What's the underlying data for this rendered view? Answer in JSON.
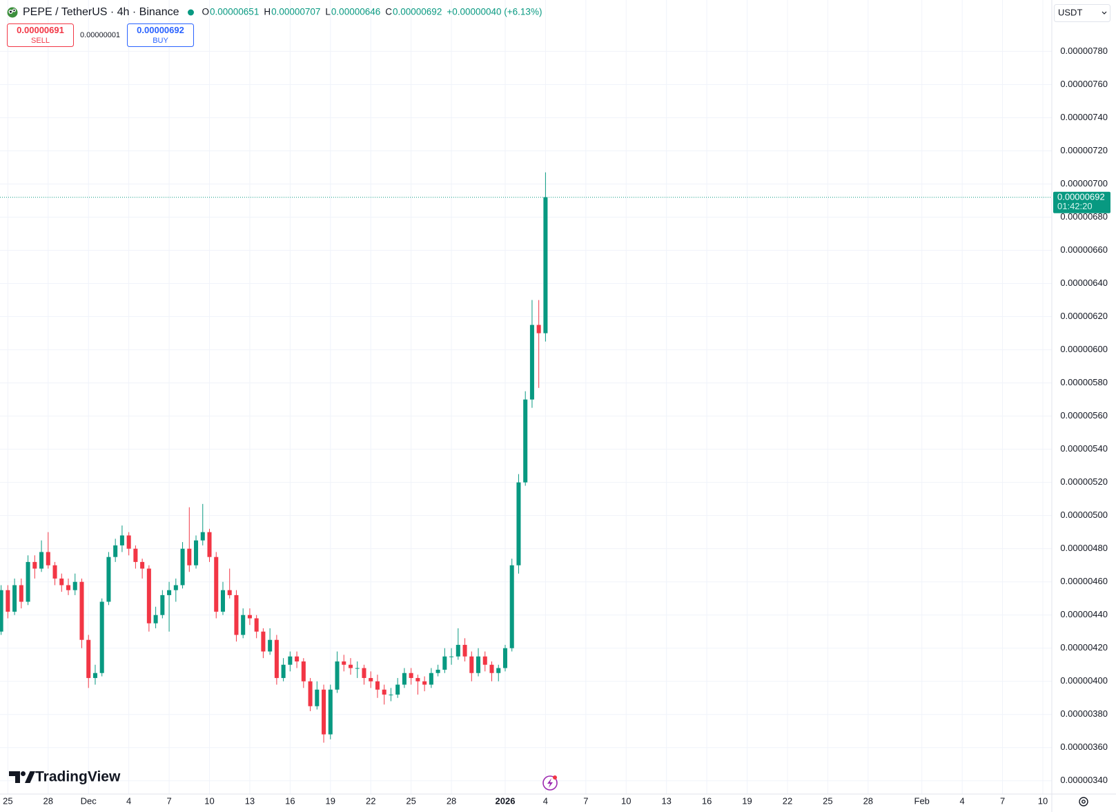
{
  "chart_data": {
    "type": "candlestick",
    "title": "PEPE / TetherUS · 4h · Binance",
    "ohlc": [
      {
        "key": "O",
        "value": "0.00000651"
      },
      {
        "key": "H",
        "value": "0.00000707"
      },
      {
        "key": "L",
        "value": "0.00000646"
      },
      {
        "key": "C",
        "value": "0.00000692"
      }
    ],
    "change": "+0.00000040 (+6.13%)",
    "sell": {
      "price": "0.00000691",
      "label": "SELL"
    },
    "spread": "0.00000001",
    "buy": {
      "price": "0.00000692",
      "label": "BUY"
    },
    "currency": "USDT",
    "logo": "TradingView",
    "up_color": "#089981",
    "down_color": "#f23645",
    "grid": true,
    "last_price": {
      "value": 6.92e-06,
      "label": "0.00000692",
      "countdown": "01:42:20"
    },
    "xlim": [
      "2025-11-24 10:00",
      "2026-02-10 16:00"
    ],
    "ylim": [
      3.32e-06,
      8.11e-06
    ],
    "yticks": [
      {
        "value": 3.4e-06,
        "label": "0.00000340"
      },
      {
        "value": 3.6e-06,
        "label": "0.00000360"
      },
      {
        "value": 3.8e-06,
        "label": "0.00000380"
      },
      {
        "value": 4e-06,
        "label": "0.00000400"
      },
      {
        "value": 4.2e-06,
        "label": "0.00000420"
      },
      {
        "value": 4.4e-06,
        "label": "0.00000440"
      },
      {
        "value": 4.6e-06,
        "label": "0.00000460"
      },
      {
        "value": 4.8e-06,
        "label": "0.00000480"
      },
      {
        "value": 5e-06,
        "label": "0.00000500"
      },
      {
        "value": 5.2e-06,
        "label": "0.00000520"
      },
      {
        "value": 5.4e-06,
        "label": "0.00000540"
      },
      {
        "value": 5.6e-06,
        "label": "0.00000560"
      },
      {
        "value": 5.8e-06,
        "label": "0.00000580"
      },
      {
        "value": 6e-06,
        "label": "0.00000600"
      },
      {
        "value": 6.2e-06,
        "label": "0.00000620"
      },
      {
        "value": 6.4e-06,
        "label": "0.00000640"
      },
      {
        "value": 6.6e-06,
        "label": "0.00000660"
      },
      {
        "value": 6.8e-06,
        "label": "0.00000680"
      },
      {
        "value": 7e-06,
        "label": "0.00000700"
      },
      {
        "value": 7.2e-06,
        "label": "0.00000720"
      },
      {
        "value": 7.4e-06,
        "label": "0.00000740"
      },
      {
        "value": 7.6e-06,
        "label": "0.00000760"
      },
      {
        "value": 7.8e-06,
        "label": "0.00000780"
      }
    ],
    "xticks": [
      {
        "value": "2025-11-25",
        "label": "25"
      },
      {
        "value": "2025-11-28",
        "label": "28"
      },
      {
        "value": "2025-12-01",
        "label": "Dec"
      },
      {
        "value": "2025-12-04",
        "label": "4"
      },
      {
        "value": "2025-12-07",
        "label": "7"
      },
      {
        "value": "2025-12-10",
        "label": "10"
      },
      {
        "value": "2025-12-13",
        "label": "13"
      },
      {
        "value": "2025-12-16",
        "label": "16"
      },
      {
        "value": "2025-12-19",
        "label": "19"
      },
      {
        "value": "2025-12-22",
        "label": "22"
      },
      {
        "value": "2025-12-25",
        "label": "25"
      },
      {
        "value": "2025-12-28",
        "label": "28"
      },
      {
        "value": "2026-01-01",
        "label": "2026"
      },
      {
        "value": "2026-01-04",
        "label": "4"
      },
      {
        "value": "2026-01-07",
        "label": "7"
      },
      {
        "value": "2026-01-10",
        "label": "10"
      },
      {
        "value": "2026-01-13",
        "label": "13"
      },
      {
        "value": "2026-01-16",
        "label": "16"
      },
      {
        "value": "2026-01-19",
        "label": "19"
      },
      {
        "value": "2026-01-22",
        "label": "22"
      },
      {
        "value": "2026-01-25",
        "label": "25"
      },
      {
        "value": "2026-01-28",
        "label": "28"
      },
      {
        "value": "2026-02-01",
        "label": "Feb"
      },
      {
        "value": "2026-02-04",
        "label": "4"
      },
      {
        "value": "2026-02-07",
        "label": "7"
      },
      {
        "value": "2026-02-10",
        "label": "10"
      }
    ],
    "x": [
      "2025-11-24 12:00",
      "2025-11-25 00:00",
      "2025-11-25 12:00",
      "2025-11-26 00:00",
      "2025-11-26 12:00",
      "2025-11-27 00:00",
      "2025-11-27 12:00",
      "2025-11-28 00:00",
      "2025-11-28 12:00",
      "2025-11-29 00:00",
      "2025-11-29 12:00",
      "2025-11-30 00:00",
      "2025-11-30 12:00",
      "2025-12-01 00:00",
      "2025-12-01 12:00",
      "2025-12-02 00:00",
      "2025-12-02 12:00",
      "2025-12-03 00:00",
      "2025-12-03 12:00",
      "2025-12-04 00:00",
      "2025-12-04 12:00",
      "2025-12-05 00:00",
      "2025-12-05 12:00",
      "2025-12-06 00:00",
      "2025-12-06 12:00",
      "2025-12-07 00:00",
      "2025-12-07 12:00",
      "2025-12-08 00:00",
      "2025-12-08 12:00",
      "2025-12-09 00:00",
      "2025-12-09 12:00",
      "2025-12-10 00:00",
      "2025-12-10 12:00",
      "2025-12-11 00:00",
      "2025-12-11 12:00",
      "2025-12-12 00:00",
      "2025-12-12 12:00",
      "2025-12-13 00:00",
      "2025-12-13 12:00",
      "2025-12-14 00:00",
      "2025-12-14 12:00",
      "2025-12-15 00:00",
      "2025-12-15 12:00",
      "2025-12-16 00:00",
      "2025-12-16 12:00",
      "2025-12-17 00:00",
      "2025-12-17 12:00",
      "2025-12-18 00:00",
      "2025-12-18 12:00",
      "2025-12-19 00:00",
      "2025-12-19 12:00",
      "2025-12-20 00:00",
      "2025-12-20 12:00",
      "2025-12-21 00:00",
      "2025-12-21 12:00",
      "2025-12-22 00:00",
      "2025-12-22 12:00",
      "2025-12-23 00:00",
      "2025-12-23 12:00",
      "2025-12-24 00:00",
      "2025-12-24 12:00",
      "2025-12-25 00:00",
      "2025-12-25 12:00",
      "2025-12-26 00:00",
      "2025-12-26 12:00",
      "2025-12-27 00:00",
      "2025-12-27 12:00",
      "2025-12-28 00:00",
      "2025-12-28 12:00",
      "2025-12-29 00:00",
      "2025-12-29 12:00",
      "2025-12-30 00:00",
      "2025-12-30 12:00",
      "2025-12-31 00:00",
      "2025-12-31 12:00",
      "2026-01-01 00:00",
      "2026-01-01 12:00",
      "2026-01-02 00:00",
      "2026-01-02 12:00",
      "2026-01-03 00:00",
      "2026-01-03 12:00",
      "2026-01-04 00:00"
    ],
    "open": [
      4.3e-06,
      4.55e-06,
      4.42e-06,
      4.58e-06,
      4.48e-06,
      4.72e-06,
      4.68e-06,
      4.78e-06,
      4.7e-06,
      4.62e-06,
      4.58e-06,
      4.55e-06,
      4.6e-06,
      4.25e-06,
      4.02e-06,
      4.05e-06,
      4.48e-06,
      4.75e-06,
      4.82e-06,
      4.88e-06,
      4.8e-06,
      4.72e-06,
      4.68e-06,
      4.35e-06,
      4.4e-06,
      4.52e-06,
      4.55e-06,
      4.58e-06,
      4.8e-06,
      4.7e-06,
      4.85e-06,
      4.9e-06,
      4.75e-06,
      4.42e-06,
      4.55e-06,
      4.52e-06,
      4.28e-06,
      4.4e-06,
      4.38e-06,
      4.3e-06,
      4.18e-06,
      4.25e-06,
      4.02e-06,
      4.1e-06,
      4.15e-06,
      4.12e-06,
      4e-06,
      3.85e-06,
      3.95e-06,
      3.68e-06,
      3.95e-06,
      4.12e-06,
      4.1e-06,
      4.08e-06,
      4.08e-06,
      4.02e-06,
      4e-06,
      3.95e-06,
      3.92e-06,
      3.92e-06,
      3.98e-06,
      4.05e-06,
      4.02e-06,
      4e-06,
      3.98e-06,
      4.05e-06,
      4.07e-06,
      4.15e-06,
      4.15e-06,
      4.22e-06,
      4.15e-06,
      4.05e-06,
      4.15e-06,
      4.1e-06,
      4.05e-06,
      4.08e-06,
      4.2e-06,
      4.7e-06,
      5.2e-06,
      5.7e-06,
      6.15e-06,
      6.1e-06
    ],
    "high": [
      4.58e-06,
      4.58e-06,
      4.62e-06,
      4.62e-06,
      4.76e-06,
      4.76e-06,
      4.85e-06,
      4.9e-06,
      4.72e-06,
      4.65e-06,
      4.62e-06,
      4.65e-06,
      4.62e-06,
      4.28e-06,
      4.1e-06,
      4.5e-06,
      4.78e-06,
      4.86e-06,
      4.94e-06,
      4.9e-06,
      4.82e-06,
      4.74e-06,
      4.7e-06,
      4.45e-06,
      4.55e-06,
      4.6e-06,
      4.62e-06,
      4.84e-06,
      5.05e-06,
      4.88e-06,
      5.07e-06,
      4.92e-06,
      4.78e-06,
      4.6e-06,
      4.68e-06,
      4.55e-06,
      4.44e-06,
      4.44e-06,
      4.4e-06,
      4.32e-06,
      4.32e-06,
      4.28e-06,
      4.14e-06,
      4.18e-06,
      4.18e-06,
      4.14e-06,
      4.02e-06,
      4e-06,
      3.98e-06,
      3.98e-06,
      4.18e-06,
      4.16e-06,
      4.14e-06,
      4.12e-06,
      4.1e-06,
      4.06e-06,
      4.04e-06,
      3.98e-06,
      3.96e-06,
      4.02e-06,
      4.08e-06,
      4.08e-06,
      4.04e-06,
      4.03e-06,
      4.08e-06,
      4.1e-06,
      4.2e-06,
      4.2e-06,
      4.32e-06,
      4.26e-06,
      4.18e-06,
      4.2e-06,
      4.18e-06,
      4.12e-06,
      4.1e-06,
      4.22e-06,
      4.74e-06,
      5.25e-06,
      5.75e-06,
      6.3e-06,
      6.3e-06,
      7.07e-06
    ],
    "low": [
      4.28e-06,
      4.38e-06,
      4.4e-06,
      4.44e-06,
      4.46e-06,
      4.62e-06,
      4.66e-06,
      4.68e-06,
      4.58e-06,
      4.54e-06,
      4.52e-06,
      4.52e-06,
      4.2e-06,
      3.96e-06,
      3.98e-06,
      4.03e-06,
      4.46e-06,
      4.72e-06,
      4.78e-06,
      4.76e-06,
      4.68e-06,
      4.62e-06,
      4.3e-06,
      4.32e-06,
      4.38e-06,
      4.3e-06,
      4.48e-06,
      4.56e-06,
      4.66e-06,
      4.68e-06,
      4.82e-06,
      4.72e-06,
      4.38e-06,
      4.4e-06,
      4.5e-06,
      4.24e-06,
      4.26e-06,
      4.34e-06,
      4.26e-06,
      4.14e-06,
      4.16e-06,
      3.98e-06,
      4e-06,
      4.06e-06,
      4.08e-06,
      3.96e-06,
      3.82e-06,
      3.83e-06,
      3.63e-06,
      3.65e-06,
      3.93e-06,
      4.06e-06,
      4.04e-06,
      4.02e-06,
      3.98e-06,
      3.96e-06,
      3.9e-06,
      3.86e-06,
      3.88e-06,
      3.9e-06,
      3.96e-06,
      3.98e-06,
      3.92e-06,
      3.94e-06,
      3.96e-06,
      4.03e-06,
      4.05e-06,
      4.1e-06,
      4.13e-06,
      4.12e-06,
      4e-06,
      4.03e-06,
      4.06e-06,
      4e-06,
      4e-06,
      4.06e-06,
      4.18e-06,
      4.65e-06,
      5.18e-06,
      5.65e-06,
      5.77e-06,
      6.05e-06
    ],
    "close": [
      4.55e-06,
      4.42e-06,
      4.58e-06,
      4.48e-06,
      4.72e-06,
      4.68e-06,
      4.78e-06,
      4.7e-06,
      4.62e-06,
      4.58e-06,
      4.55e-06,
      4.6e-06,
      4.25e-06,
      4.02e-06,
      4.05e-06,
      4.48e-06,
      4.75e-06,
      4.82e-06,
      4.88e-06,
      4.8e-06,
      4.72e-06,
      4.68e-06,
      4.35e-06,
      4.4e-06,
      4.52e-06,
      4.55e-06,
      4.58e-06,
      4.8e-06,
      4.7e-06,
      4.85e-06,
      4.9e-06,
      4.75e-06,
      4.42e-06,
      4.55e-06,
      4.52e-06,
      4.28e-06,
      4.4e-06,
      4.38e-06,
      4.3e-06,
      4.18e-06,
      4.25e-06,
      4.02e-06,
      4.1e-06,
      4.15e-06,
      4.12e-06,
      4e-06,
      3.85e-06,
      3.95e-06,
      3.68e-06,
      3.95e-06,
      4.12e-06,
      4.1e-06,
      4.08e-06,
      4.08e-06,
      4.02e-06,
      4e-06,
      3.95e-06,
      3.92e-06,
      3.92e-06,
      3.98e-06,
      4.05e-06,
      4.02e-06,
      4e-06,
      3.98e-06,
      4.05e-06,
      4.07e-06,
      4.15e-06,
      4.15e-06,
      4.22e-06,
      4.15e-06,
      4.05e-06,
      4.15e-06,
      4.1e-06,
      4.05e-06,
      4.08e-06,
      4.2e-06,
      4.7e-06,
      5.2e-06,
      5.7e-06,
      6.15e-06,
      6.1e-06,
      6.92e-06
    ]
  }
}
